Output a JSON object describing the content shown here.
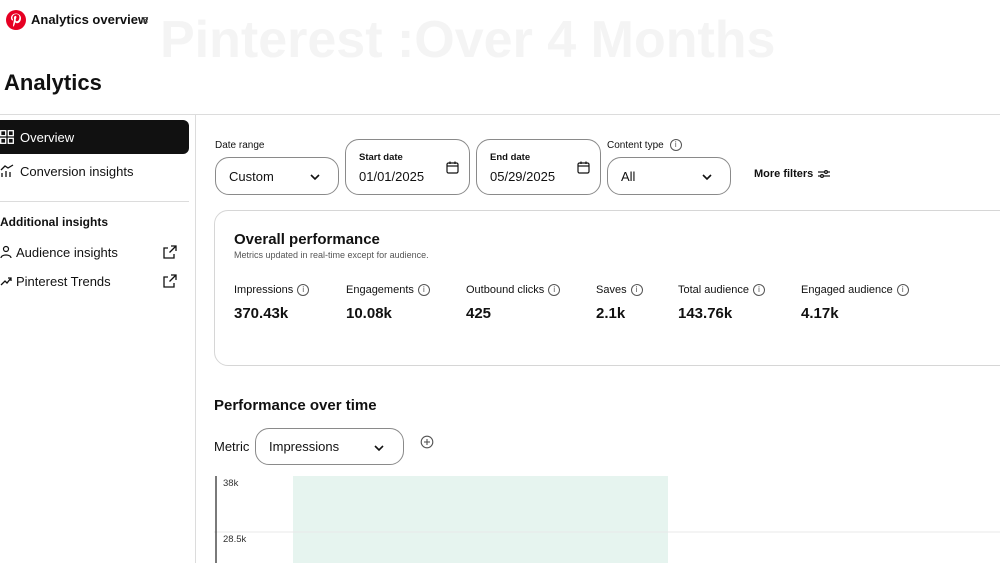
{
  "app": {
    "title": "Analytics overview",
    "watermark": "Pinterest :Over 4 Months",
    "page_title": "Analytics"
  },
  "sidebar": {
    "overview_label": "Overview",
    "conversion_label": "Conversion insights",
    "additional_heading": "Additional insights",
    "audience_label": "Audience insights",
    "trends_label": "Pinterest Trends"
  },
  "filters": {
    "date_range_label": "Date range",
    "date_range_value": "Custom",
    "start_date_label": "Start date",
    "start_date_value": "01/01/2025",
    "end_date_label": "End date",
    "end_date_value": "05/29/2025",
    "content_type_label": "Content type",
    "content_type_value": "All",
    "more_filters_label": "More filters"
  },
  "overall": {
    "title": "Overall performance",
    "subtitle": "Metrics updated in real-time except for audience.",
    "metrics": [
      {
        "label": "Impressions",
        "value": "370.43k"
      },
      {
        "label": "Engagements",
        "value": "10.08k"
      },
      {
        "label": "Outbound clicks",
        "value": "425"
      },
      {
        "label": "Saves",
        "value": "2.1k"
      },
      {
        "label": "Total audience",
        "value": "143.76k"
      },
      {
        "label": "Engaged audience",
        "value": "4.17k"
      }
    ]
  },
  "over_time": {
    "title": "Performance over time",
    "metric_label": "Metric",
    "metric_value": "Impressions"
  },
  "chart_data": {
    "type": "area",
    "y_ticks": [
      "38k",
      "28.5k"
    ],
    "y_tick_values": [
      38000,
      28500
    ],
    "ylim_visible": [
      28500,
      38000
    ],
    "highlight_band_color": "#e6f4ef",
    "grid": true
  },
  "colors": {
    "brand": "#e60023",
    "active_nav_bg": "#111111",
    "band": "#e6f4ef"
  }
}
